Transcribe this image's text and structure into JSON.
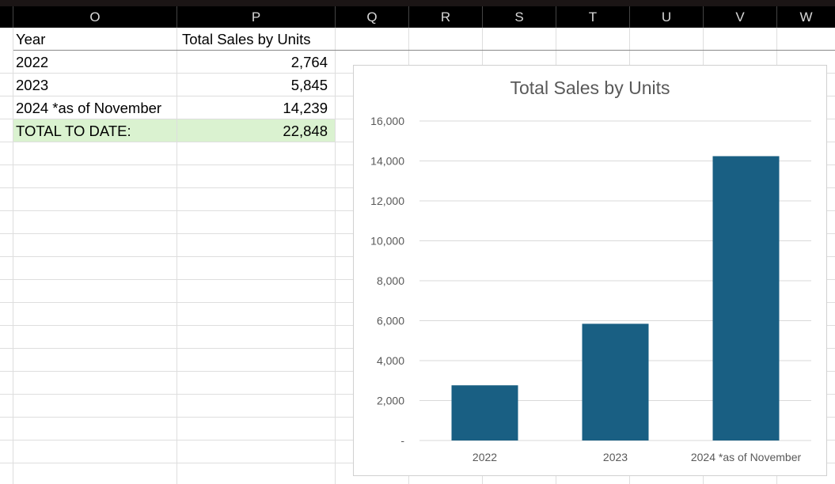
{
  "columns": [
    "O",
    "P",
    "Q",
    "R",
    "S",
    "T",
    "U",
    "V",
    "W"
  ],
  "table": {
    "header": {
      "year": "Year",
      "sales": "Total Sales by Units"
    },
    "rows": [
      {
        "year": "2022",
        "sales": "2,764"
      },
      {
        "year": "2023",
        "sales": "5,845"
      },
      {
        "year": "2024 *as of November",
        "sales": "14,239"
      }
    ],
    "total": {
      "label": "TOTAL TO DATE:",
      "value": "22,848"
    }
  },
  "colors": {
    "total_fill": "#daf2d0",
    "bar": "#195f83",
    "header_bg": "#000000"
  },
  "chart_data": {
    "type": "bar",
    "title": "Total Sales by Units",
    "categories": [
      "2022",
      "2023",
      "2024 *as of November"
    ],
    "values": [
      2764,
      5845,
      14239
    ],
    "ylim": [
      0,
      16000
    ],
    "yticks": [
      0,
      2000,
      4000,
      6000,
      8000,
      10000,
      12000,
      14000,
      16000
    ],
    "ytick_labels": [
      "-",
      "2,000",
      "4,000",
      "6,000",
      "8,000",
      "10,000",
      "12,000",
      "14,000",
      "16,000"
    ],
    "grid": true,
    "legend": "none"
  }
}
